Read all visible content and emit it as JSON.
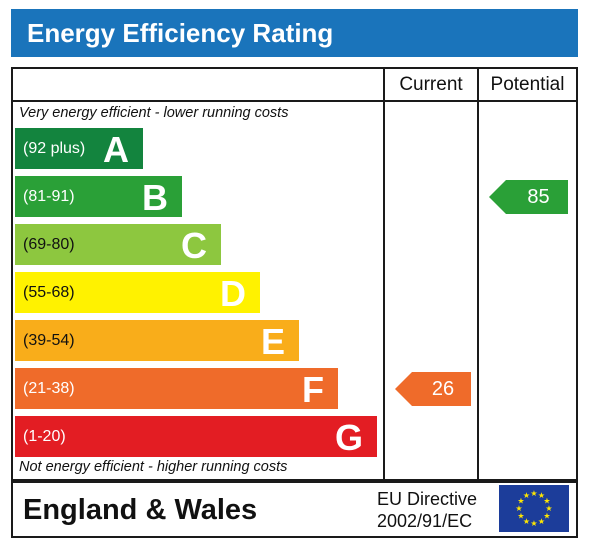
{
  "title": "Energy Efficiency Rating",
  "columns": {
    "current": "Current",
    "potential": "Potential"
  },
  "notes": {
    "top": "Very energy efficient - lower running costs",
    "bottom": "Not energy efficient - higher running costs"
  },
  "bands": [
    {
      "range": "(92 plus)",
      "letter": "A",
      "color": "#13843e"
    },
    {
      "range": "(81-91)",
      "letter": "B",
      "color": "#2aa037"
    },
    {
      "range": "(69-80)",
      "letter": "C",
      "color": "#8dc73f"
    },
    {
      "range": "(55-68)",
      "letter": "D",
      "color": "#fff200"
    },
    {
      "range": "(39-54)",
      "letter": "E",
      "color": "#f9ad1a"
    },
    {
      "range": "(21-38)",
      "letter": "F",
      "color": "#ef6b2a"
    },
    {
      "range": "(1-20)",
      "letter": "G",
      "color": "#e31d23"
    }
  ],
  "ratings": {
    "current": {
      "value": "26",
      "band": "F",
      "color": "#ef6b2a"
    },
    "potential": {
      "value": "85",
      "band": "B",
      "color": "#2aa037"
    }
  },
  "footer": {
    "region": "England & Wales",
    "directive_line1": "EU Directive",
    "directive_line2": "2002/91/EC",
    "flag": "eu-flag-icon"
  }
}
